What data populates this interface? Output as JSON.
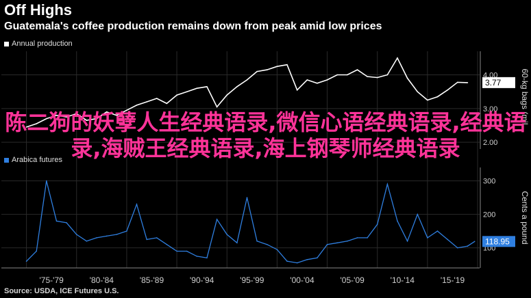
{
  "header": {
    "title": "Off Highs",
    "subtitle": "Guatemala's coffee production remains down from peak amid low prices"
  },
  "footer": {
    "source": "Source: USDA, ICE Futures U.S."
  },
  "overlay": {
    "text": "陈二狗的妖孽人生经典语录,微信心语经典语录,经典语录,海贼王经典语录,海上钢琴师经典语录"
  },
  "colors": {
    "background": "#000000",
    "production": "#ffffff",
    "price": "#2f7fe0",
    "overlay": "#ff3399"
  },
  "chart_data": [
    {
      "type": "line",
      "series": [
        {
          "name": "Annual production",
          "x": [
            1975,
            1976,
            1977,
            1978,
            1979,
            1980,
            1981,
            1982,
            1983,
            1984,
            1985,
            1986,
            1987,
            1988,
            1989,
            1990,
            1991,
            1992,
            1993,
            1994,
            1995,
            1996,
            1997,
            1998,
            1999,
            2000,
            2001,
            2002,
            2003,
            2004,
            2005,
            2006,
            2007,
            2008,
            2009,
            2010,
            2011,
            2012,
            2013,
            2014,
            2015,
            2016,
            2017,
            2018,
            2019
          ],
          "values": [
            2.45,
            2.55,
            2.7,
            2.8,
            2.75,
            2.85,
            2.65,
            2.7,
            2.9,
            2.8,
            2.95,
            3.1,
            3.2,
            3.3,
            3.15,
            3.4,
            3.5,
            3.6,
            3.65,
            3.05,
            3.4,
            3.65,
            3.85,
            4.1,
            4.15,
            4.25,
            4.3,
            3.55,
            3.85,
            3.75,
            3.85,
            4.0,
            4.0,
            4.15,
            3.95,
            3.92,
            4.0,
            4.5,
            3.9,
            3.5,
            3.25,
            3.35,
            3.55,
            3.78,
            3.77
          ]
        }
      ],
      "ylabel": "60-kg bags (mil...",
      "yticks": [
        "2.00",
        "3.00",
        "4.00"
      ],
      "ylim": [
        1.8,
        4.7
      ],
      "current_value_label": "3.77"
    },
    {
      "type": "line",
      "series": [
        {
          "name": "Arabica futures",
          "x": [
            1975,
            1976,
            1977,
            1978,
            1979,
            1980,
            1981,
            1982,
            1983,
            1984,
            1985,
            1986,
            1987,
            1988,
            1989,
            1990,
            1991,
            1992,
            1993,
            1994,
            1995,
            1996,
            1997,
            1998,
            1999,
            2000,
            2001,
            2002,
            2003,
            2004,
            2005,
            2006,
            2007,
            2008,
            2009,
            2010,
            2011,
            2012,
            2013,
            2014,
            2015,
            2016,
            2017,
            2018,
            2019,
            2019.7
          ],
          "values": [
            60,
            90,
            300,
            180,
            175,
            140,
            120,
            130,
            135,
            140,
            150,
            230,
            125,
            130,
            110,
            90,
            90,
            75,
            70,
            185,
            140,
            115,
            250,
            120,
            110,
            95,
            60,
            55,
            65,
            70,
            110,
            115,
            120,
            130,
            130,
            170,
            290,
            180,
            120,
            200,
            130,
            150,
            125,
            100,
            105,
            118.95
          ]
        }
      ],
      "ylabel": "Cents a pound",
      "yticks": [
        "100",
        "200",
        "300"
      ],
      "ylim": [
        40,
        340
      ],
      "current_value_label": "118.95"
    }
  ],
  "x_axis": {
    "ticks": [
      "'75-'79",
      "'80-'84",
      "'85-'89",
      "'90-'94",
      "'95-'99",
      "'00-'04",
      "'05-'09",
      "'10-'14",
      "'15-'19"
    ]
  }
}
